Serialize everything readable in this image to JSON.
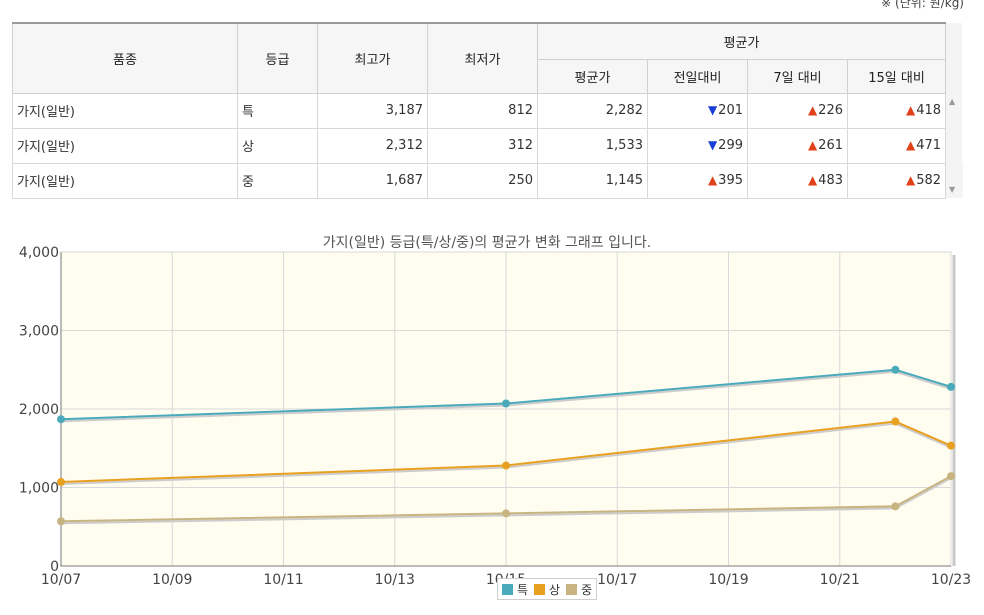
{
  "unit_note": "※ (단위: 원/kg)",
  "table": {
    "headers": {
      "item": "품종",
      "grade": "등급",
      "max": "최고가",
      "min": "최저가",
      "avg_group": "평균가",
      "avg": "평균가",
      "prev_day": "전일대비",
      "d7": "7일 대비",
      "d15": "15일 대비"
    },
    "rows": [
      {
        "item": "가지(일반)",
        "grade": "특",
        "max": "3,187",
        "min": "812",
        "avg": "2,282",
        "prev": "201",
        "prev_dir": "down",
        "d7": "226",
        "d7_dir": "up",
        "d15": "418",
        "d15_dir": "up"
      },
      {
        "item": "가지(일반)",
        "grade": "상",
        "max": "2,312",
        "min": "312",
        "avg": "1,533",
        "prev": "299",
        "prev_dir": "down",
        "d7": "261",
        "d7_dir": "up",
        "d15": "471",
        "d15_dir": "up"
      },
      {
        "item": "가지(일반)",
        "grade": "중",
        "max": "1,687",
        "min": "250",
        "avg": "1,145",
        "prev": "395",
        "prev_dir": "up",
        "d7": "483",
        "d7_dir": "up",
        "d15": "582",
        "d15_dir": "up"
      }
    ]
  },
  "chart_data": {
    "type": "line",
    "title": "가지(일반) 등급(특/상/중)의 평균가 변화 그래프 입니다.",
    "x_ticks": [
      "10/07",
      "10/09",
      "10/11",
      "10/13",
      "10/15",
      "10/17",
      "10/19",
      "10/21",
      "10/23"
    ],
    "x_range": [
      "10/07",
      "10/23"
    ],
    "y_ticks": [
      "0",
      "1,000",
      "2,000",
      "3,000",
      "4,000"
    ],
    "ylim": [
      0,
      4000
    ],
    "grid": true,
    "legend_position": "bottom",
    "series": [
      {
        "name": "특",
        "color": "#4aaabb",
        "points": [
          {
            "x": "10/07",
            "y": 1870
          },
          {
            "x": "10/15",
            "y": 2070
          },
          {
            "x": "10/22",
            "y": 2500
          },
          {
            "x": "10/23",
            "y": 2282
          }
        ]
      },
      {
        "name": "상",
        "color": "#e8a020",
        "points": [
          {
            "x": "10/07",
            "y": 1070
          },
          {
            "x": "10/15",
            "y": 1280
          },
          {
            "x": "10/22",
            "y": 1840
          },
          {
            "x": "10/23",
            "y": 1533
          }
        ]
      },
      {
        "name": "중",
        "color": "#c8b480",
        "points": [
          {
            "x": "10/07",
            "y": 570
          },
          {
            "x": "10/15",
            "y": 670
          },
          {
            "x": "10/22",
            "y": 760
          },
          {
            "x": "10/23",
            "y": 1145
          }
        ]
      }
    ]
  }
}
